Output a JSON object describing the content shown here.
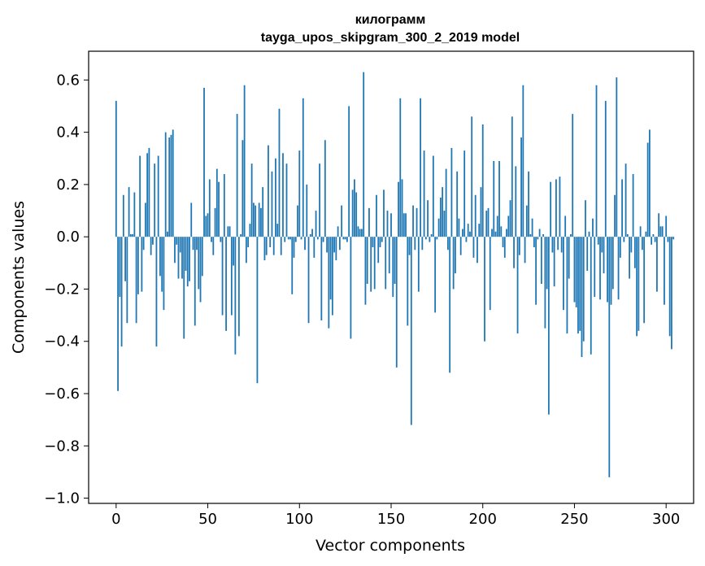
{
  "chart_data": {
    "type": "bar",
    "title": "килограмм",
    "subtitle": "tayga_upos_skipgram_300_2_2019 model",
    "xlabel": "Vector components",
    "ylabel": "Components values",
    "xlim": [
      -15,
      315
    ],
    "ylim": [
      -1.02,
      0.71
    ],
    "xticks": [
      0,
      50,
      100,
      150,
      200,
      250,
      300
    ],
    "yticks": [
      -1.0,
      -0.8,
      -0.6,
      -0.4,
      -0.2,
      0.0,
      0.2,
      0.4,
      0.6
    ],
    "ytick_labels": [
      "−1.0",
      "−0.8",
      "−0.6",
      "−0.4",
      "−0.2",
      "0.0",
      "0.2",
      "0.4",
      "0.6"
    ],
    "bar_color": "#1f77b4",
    "grid": false,
    "values": [
      0.52,
      -0.59,
      -0.23,
      -0.42,
      0.16,
      -0.17,
      -0.33,
      0.19,
      0.01,
      0.01,
      0.17,
      -0.33,
      -0.22,
      0.31,
      -0.21,
      -0.05,
      0.13,
      0.32,
      0.34,
      -0.07,
      -0.03,
      0.28,
      -0.42,
      0.31,
      -0.15,
      -0.21,
      -0.28,
      0.4,
      0.02,
      0.38,
      0.39,
      0.41,
      -0.1,
      -0.03,
      -0.16,
      -0.06,
      -0.16,
      -0.39,
      -0.13,
      -0.19,
      -0.17,
      0.13,
      -0.05,
      -0.34,
      -0.05,
      -0.2,
      -0.25,
      -0.15,
      0.57,
      0.08,
      0.09,
      0.22,
      -0.02,
      -0.07,
      0.11,
      0.26,
      0.21,
      -0.02,
      -0.3,
      0.24,
      -0.36,
      0.04,
      0.04,
      -0.3,
      -0.11,
      -0.45,
      0.47,
      -0.38,
      0.01,
      0.37,
      0.58,
      -0.1,
      -0.04,
      0.05,
      0.28,
      0.13,
      0.12,
      -0.56,
      0.13,
      0.11,
      0.19,
      -0.09,
      -0.07,
      0.35,
      -0.04,
      0.25,
      -0.07,
      0.3,
      0.05,
      0.49,
      -0.07,
      0.32,
      -0.02,
      0.28,
      -0.01,
      -0.01,
      -0.22,
      -0.08,
      -0.02,
      0.12,
      0.33,
      -0.01,
      0.53,
      -0.05,
      0.2,
      -0.33,
      0.01,
      0.03,
      -0.08,
      0.1,
      -0.01,
      0.28,
      -0.32,
      -0.02,
      0.37,
      -0.06,
      -0.35,
      -0.24,
      -0.3,
      -0.06,
      -0.09,
      0.04,
      -0.05,
      0.12,
      -0.01,
      -0.01,
      -0.02,
      0.5,
      -0.39,
      0.18,
      0.22,
      0.17,
      0.04,
      0.03,
      0.03,
      0.63,
      -0.26,
      -0.18,
      0.11,
      -0.21,
      -0.04,
      -0.2,
      0.16,
      -0.1,
      -0.04,
      -0.02,
      0.18,
      -0.2,
      0.1,
      -0.14,
      0.09,
      -0.23,
      -0.18,
      -0.5,
      0.21,
      0.53,
      0.22,
      0.09,
      0.09,
      -0.34,
      -0.07,
      -0.72,
      0.12,
      -0.05,
      0.11,
      -0.21,
      0.53,
      -0.05,
      0.33,
      -0.01,
      0.14,
      -0.02,
      0.01,
      0.31,
      -0.29,
      -0.01,
      0.07,
      0.15,
      0.19,
      0.1,
      0.26,
      -0.05,
      -0.52,
      0.34,
      -0.2,
      -0.14,
      0.25,
      0.07,
      -0.07,
      0.03,
      0.33,
      -0.02,
      0.05,
      0.02,
      0.46,
      -0.08,
      0.16,
      -0.1,
      0.05,
      0.19,
      0.43,
      -0.4,
      0.1,
      0.11,
      -0.28,
      0.03,
      0.29,
      0.02,
      0.08,
      0.29,
      0.04,
      -0.04,
      -0.08,
      0.03,
      0.08,
      0.14,
      0.46,
      -0.12,
      0.27,
      -0.37,
      -0.07,
      0.38,
      0.58,
      -0.1,
      0.12,
      0.25,
      0.01,
      0.07,
      -0.04,
      -0.26,
      -0.01,
      0.03,
      -0.18,
      0.01,
      -0.35,
      -0.2,
      -0.68,
      0.21,
      -0.06,
      -0.19,
      0.22,
      -0.05,
      0.23,
      -0.06,
      -0.28,
      0.08,
      -0.37,
      -0.16,
      0.01,
      0.47,
      -0.25,
      -0.27,
      -0.37,
      -0.36,
      -0.46,
      -0.4,
      0.14,
      -0.13,
      0.02,
      -0.45,
      0.07,
      -0.23,
      0.58,
      -0.03,
      -0.24,
      -0.06,
      -0.14,
      0.52,
      -0.25,
      -0.92,
      -0.26,
      -0.2,
      0.16,
      0.61,
      -0.24,
      -0.08,
      0.22,
      -0.02,
      0.28,
      0.01,
      -0.16,
      -0.06,
      0.24,
      -0.12,
      -0.38,
      -0.36,
      0.04,
      -0.05,
      -0.33,
      0.02,
      0.36,
      0.41,
      -0.03,
      0.01,
      -0.02,
      -0.21,
      0.09,
      0.04,
      0.04,
      -0.26,
      0.08,
      -0.02,
      -0.38,
      -0.43,
      -0.01
    ]
  }
}
